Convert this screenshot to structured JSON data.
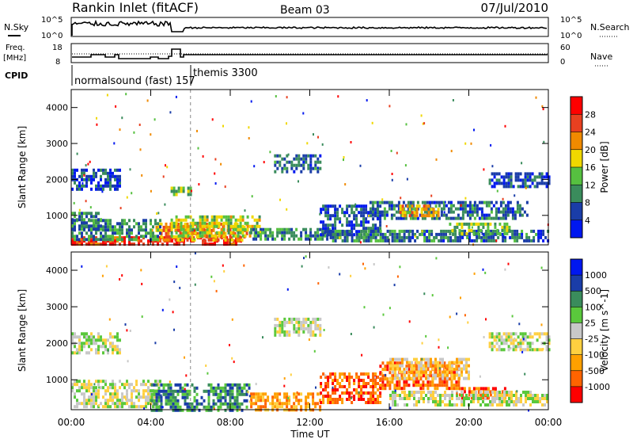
{
  "header": {
    "title": "Rankin Inlet (fitACF)",
    "beam": "Beam 03",
    "date": "07/Jul/2010"
  },
  "labels": {
    "nsky": "N.Sky",
    "nsearch": "N.Search",
    "freq": "Freq.",
    "mhz": "[MHz]",
    "nave": "Nave",
    "cpid": "CPID",
    "nsky_ticks": [
      "10^5",
      "10^0"
    ],
    "freq_ticks": [
      "18",
      "8"
    ],
    "nave_ticks": [
      "60",
      "0"
    ],
    "cpid_modes": [
      {
        "text": "normalsound (fast) 157",
        "start_hour": 0.0
      },
      {
        "text": "themis 3300",
        "start_hour": 6.0
      }
    ]
  },
  "colors": {
    "power": [
      "#0018f0",
      "#1a3da8",
      "#3a8c5c",
      "#56c040",
      "#f0d800",
      "#f08a00",
      "#e84020",
      "#ff0000"
    ],
    "velocity": [
      "#ff0000",
      "#ff6400",
      "#ffa000",
      "#ffd040",
      "#c8c8c8",
      "#5ac83c",
      "#3a8c5c",
      "#1a3da8",
      "#0018f0"
    ]
  },
  "chart_data": [
    {
      "type": "heatmap",
      "name": "power",
      "xlabel": "",
      "ylabel": "Slant Range [km]",
      "xlim_hours": [
        0,
        24
      ],
      "ylim": [
        180,
        4500
      ],
      "y_ticks": [
        1000,
        2000,
        3000,
        4000
      ],
      "colorbar_label": "Power [dB]",
      "colorbar_ticks": [
        4,
        8,
        12,
        16,
        20,
        24,
        28
      ],
      "colorbar_range": [
        0,
        32
      ],
      "dashed_times_hours": [
        6.0
      ],
      "regions": [
        {
          "t": [
            0.0,
            8.5
          ],
          "r": [
            180,
            420
          ],
          "v": 27
        },
        {
          "t": [
            4.0,
            8.8
          ],
          "r": [
            300,
            800
          ],
          "v": 22
        },
        {
          "t": [
            5.0,
            9.5
          ],
          "r": [
            400,
            1000
          ],
          "v": 16
        },
        {
          "t": [
            0.0,
            4.5
          ],
          "r": [
            300,
            900
          ],
          "v": 10
        },
        {
          "t": [
            0.0,
            1.5
          ],
          "r": [
            600,
            1100
          ],
          "v": 9
        },
        {
          "t": [
            9.0,
            13.0
          ],
          "r": [
            300,
            650
          ],
          "v": 10
        },
        {
          "t": [
            12.5,
            15.5
          ],
          "r": [
            500,
            1300
          ],
          "v": 6
        },
        {
          "t": [
            13.0,
            17.0
          ],
          "r": [
            300,
            600
          ],
          "v": 9
        },
        {
          "t": [
            17.0,
            24.0
          ],
          "r": [
            300,
            600
          ],
          "v": 8
        },
        {
          "t": [
            19.0,
            22.0
          ],
          "r": [
            500,
            800
          ],
          "v": 14
        },
        {
          "t": [
            15.0,
            23.0
          ],
          "r": [
            900,
            1400
          ],
          "v": 8
        },
        {
          "t": [
            16.5,
            18.5
          ],
          "r": [
            1000,
            1300
          ],
          "v": 20
        },
        {
          "t": [
            0.0,
            2.5
          ],
          "r": [
            1700,
            2300
          ],
          "v": 6
        },
        {
          "t": [
            10.2,
            12.5
          ],
          "r": [
            2200,
            2700
          ],
          "v": 8
        },
        {
          "t": [
            21.0,
            24.0
          ],
          "r": [
            1800,
            2200
          ],
          "v": 6
        },
        {
          "t": [
            5.0,
            6.0
          ],
          "r": [
            1600,
            1800
          ],
          "v": 14
        }
      ]
    },
    {
      "type": "heatmap",
      "name": "velocity",
      "xlabel": "Time UT",
      "ylabel": "Slant Range [km]",
      "xlim_hours": [
        0,
        24
      ],
      "x_ticks": [
        "00:00",
        "04:00",
        "08:00",
        "12:00",
        "16:00",
        "20:00",
        "00:00"
      ],
      "ylim": [
        180,
        4500
      ],
      "y_ticks": [
        1000,
        2000,
        3000,
        4000
      ],
      "colorbar_label": "Velocity [m s^-1]",
      "colorbar_ticks": [
        "1000",
        "500",
        "100",
        "25",
        "-25",
        "-100",
        "-500",
        "-1000"
      ],
      "dashed_times_hours": [
        6.0
      ],
      "regions": [
        {
          "t": [
            0.0,
            4.5
          ],
          "r": [
            300,
            1000
          ],
          "v": 4
        },
        {
          "t": [
            4.0,
            9.0
          ],
          "r": [
            180,
            900
          ],
          "v": 6
        },
        {
          "t": [
            9.0,
            12.5
          ],
          "r": [
            180,
            650
          ],
          "v": 2
        },
        {
          "t": [
            12.5,
            15.5
          ],
          "r": [
            400,
            1200
          ],
          "v": 1
        },
        {
          "t": [
            15.5,
            19.5
          ],
          "r": [
            800,
            1500
          ],
          "v": 1
        },
        {
          "t": [
            19.5,
            22.0
          ],
          "r": [
            500,
            800
          ],
          "v": 1
        },
        {
          "t": [
            0.0,
            2.5
          ],
          "r": [
            1700,
            2300
          ],
          "v": 4
        },
        {
          "t": [
            10.2,
            12.5
          ],
          "r": [
            2200,
            2700
          ],
          "v": 4
        },
        {
          "t": [
            21.0,
            24.0
          ],
          "r": [
            1800,
            2300
          ],
          "v": 4
        },
        {
          "t": [
            16.0,
            24.0
          ],
          "r": [
            300,
            700
          ],
          "v": 4
        },
        {
          "t": [
            16.0,
            20.0
          ],
          "r": [
            1000,
            1600
          ],
          "v": 3
        }
      ]
    }
  ]
}
